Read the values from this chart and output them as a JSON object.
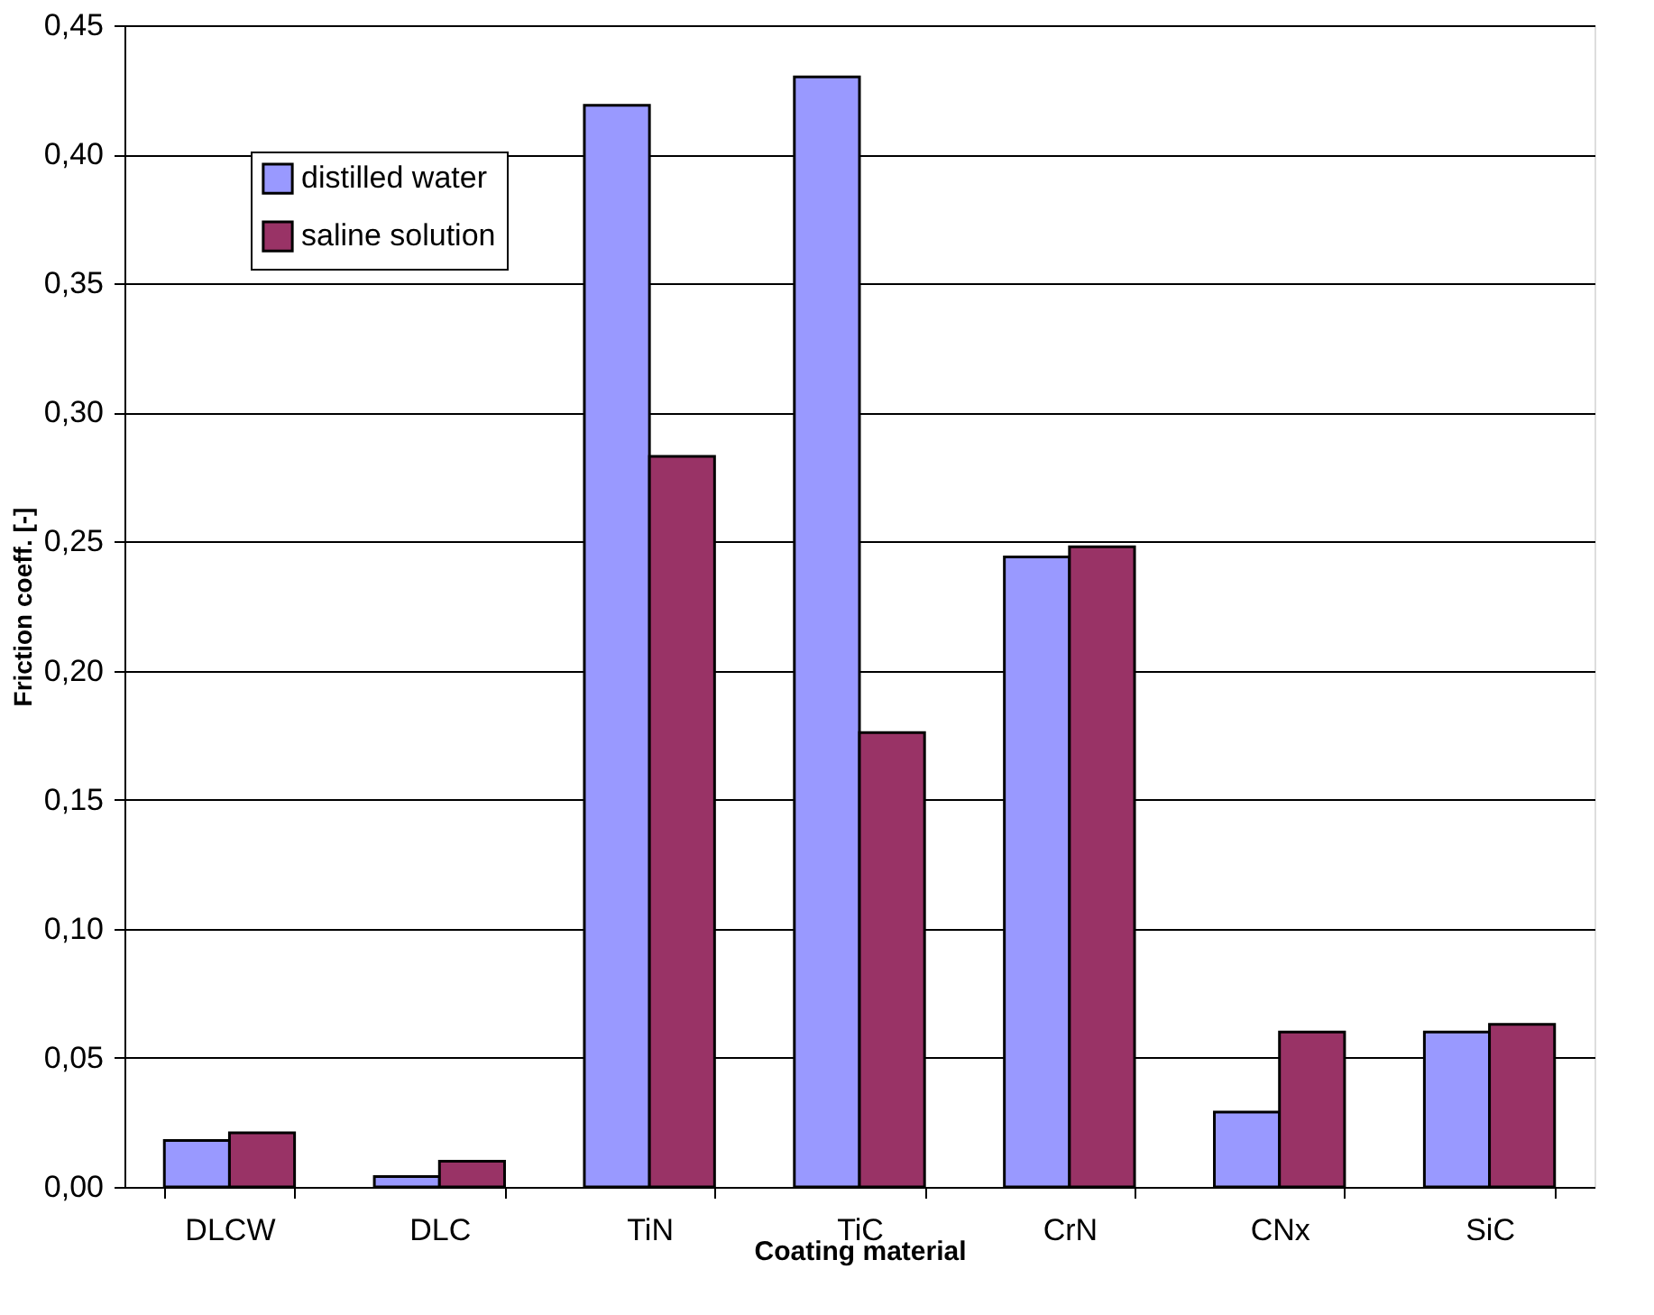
{
  "chart_data": {
    "type": "bar",
    "xlabel": "Coating material",
    "ylabel": "Friction coeff. [-]",
    "categories": [
      "DLCW",
      "DLC",
      "TiN",
      "TiC",
      "CrN",
      "CNx",
      "SiC"
    ],
    "series": [
      {
        "name": "distilled water",
        "color": "#9999ff",
        "values": [
          0.018,
          0.004,
          0.419,
          0.43,
          0.244,
          0.029,
          0.06
        ]
      },
      {
        "name": "saline solution",
        "color": "#993366",
        "values": [
          0.021,
          0.01,
          0.283,
          0.176,
          0.248,
          0.06,
          0.063
        ]
      }
    ],
    "ylim": [
      0,
      0.45
    ],
    "yticks": [
      {
        "value": 0,
        "label": "0,00"
      },
      {
        "value": 0.05,
        "label": "0,05"
      },
      {
        "value": 0.1,
        "label": "0,10"
      },
      {
        "value": 0.15,
        "label": "0,15"
      },
      {
        "value": 0.2,
        "label": "0,20"
      },
      {
        "value": 0.25,
        "label": "0,25"
      },
      {
        "value": 0.3,
        "label": "0,30"
      },
      {
        "value": 0.35,
        "label": "0,35"
      },
      {
        "value": 0.4,
        "label": "0,40"
      },
      {
        "value": 0.45,
        "label": "0,45"
      }
    ],
    "grid": "y",
    "legend": "top left"
  }
}
